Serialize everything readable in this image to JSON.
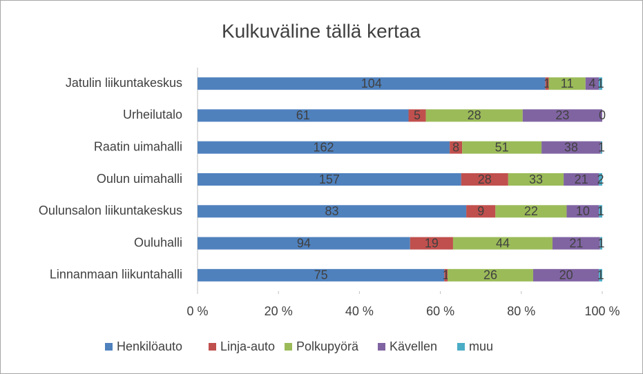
{
  "chart_data": {
    "type": "bar",
    "orientation": "horizontal",
    "stacking": "percent",
    "title": "Kulkuväline tällä kertaa",
    "categories": [
      "Jatulin liikuntakeskus",
      "Urheilutalo",
      "Raatin uimahalli",
      "Oulun uimahalli",
      "Oulunsalon liikuntakeskus",
      "Ouluhalli",
      "Linnanmaan liikuntahalli"
    ],
    "series": [
      {
        "name": "Henkilöauto",
        "color": "#4f81bd",
        "values": [
          104,
          61,
          162,
          157,
          83,
          94,
          75
        ]
      },
      {
        "name": "Linja-auto",
        "color": "#c0504d",
        "values": [
          1,
          5,
          8,
          28,
          9,
          19,
          1
        ]
      },
      {
        "name": "Polkupyörä",
        "color": "#9bbb59",
        "values": [
          11,
          28,
          51,
          33,
          22,
          44,
          26
        ]
      },
      {
        "name": "Kävellen",
        "color": "#8064a2",
        "values": [
          4,
          23,
          38,
          21,
          10,
          21,
          20
        ]
      },
      {
        "name": "muu",
        "color": "#4bacc6",
        "values": [
          1,
          0,
          1,
          2,
          1,
          1,
          1
        ]
      }
    ],
    "xlim": [
      0,
      100
    ],
    "xticks": [
      {
        "value": 0,
        "label": "0 %"
      },
      {
        "value": 20,
        "label": "20 %"
      },
      {
        "value": 40,
        "label": "40 %"
      },
      {
        "value": 60,
        "label": "60 %"
      },
      {
        "value": 80,
        "label": "80 %"
      },
      {
        "value": 100,
        "label": "100 %"
      }
    ],
    "legend": "bottom",
    "data_labels": true
  }
}
